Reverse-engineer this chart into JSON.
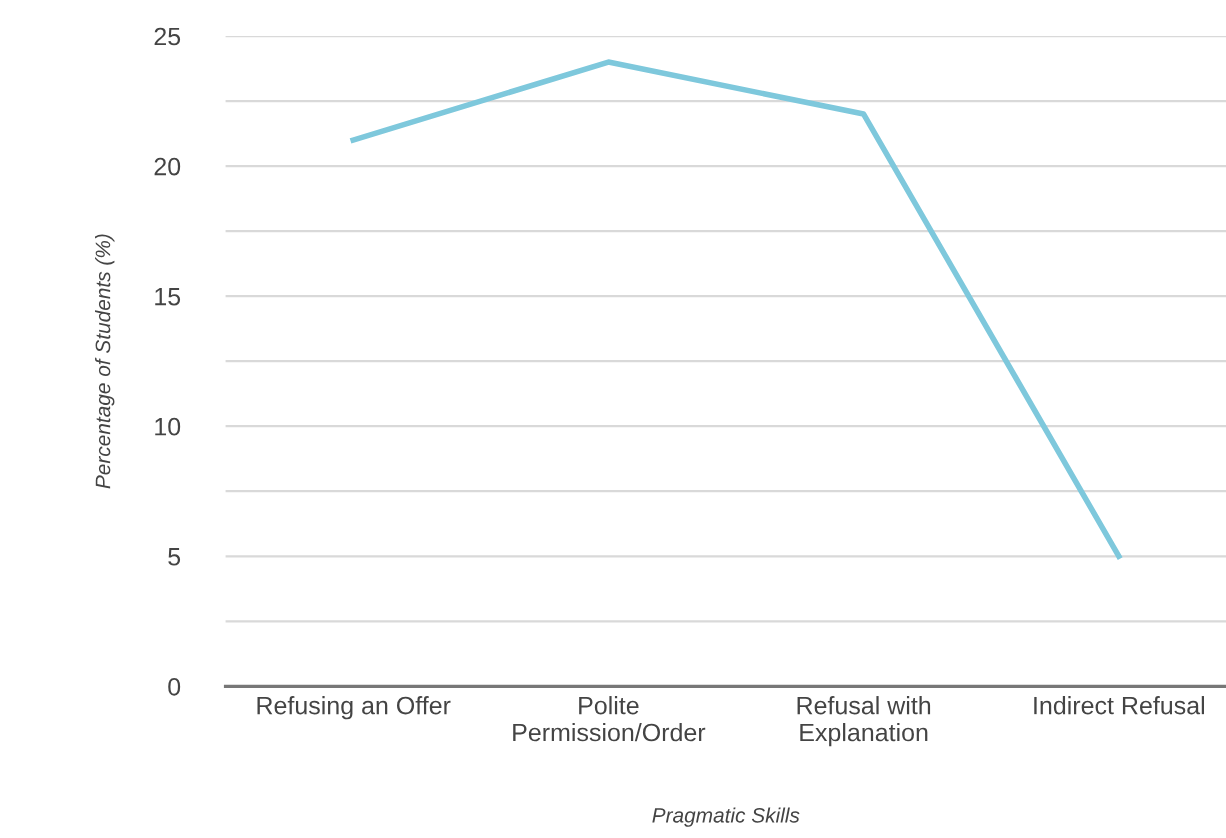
{
  "chart_data": {
    "type": "line",
    "xlabel": "Pragmatic Skills",
    "ylabel": "Percentage of Students (%)",
    "categories": [
      "Refusing an Offer",
      "Polite\nPermission/Order",
      "Refusal with\nExplanation",
      "Indirect Refusal"
    ],
    "series": [
      {
        "color": "#7ec8dc",
        "values": [
          21,
          24,
          22,
          5
        ]
      }
    ],
    "ylim": [
      0,
      25
    ],
    "yticks": [
      0,
      {
        "value": 2.5,
        "label": null
      },
      5,
      {
        "value": 7.5,
        "label": null
      },
      10,
      {
        "value": 12.5,
        "label": null
      },
      15,
      {
        "value": 17.5,
        "label": null
      },
      20,
      {
        "value": 22.5,
        "label": null
      },
      25
    ],
    "grid": "y",
    "legend": false,
    "marker": "none",
    "line_style": "solid"
  }
}
